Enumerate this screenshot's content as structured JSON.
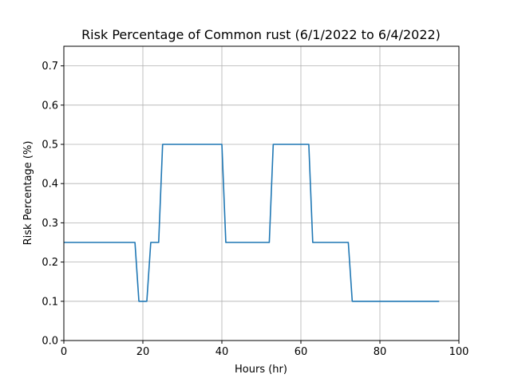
{
  "chart_data": {
    "type": "line",
    "title": "Risk Percentage of Common rust (6/1/2022 to 6/4/2022)",
    "xlabel": "Hours (hr)",
    "ylabel": "Risk Percentage (%)",
    "xlim": [
      0,
      100
    ],
    "ylim": [
      0,
      0.75
    ],
    "xticks": [
      0,
      20,
      40,
      60,
      80,
      100
    ],
    "yticks": [
      0.0,
      0.1,
      0.2,
      0.3,
      0.4,
      0.5,
      0.6,
      0.7
    ],
    "ytick_labels": [
      "0.0",
      "0.1",
      "0.2",
      "0.3",
      "0.4",
      "0.5",
      "0.6",
      "0.7"
    ],
    "grid": true,
    "line_color": "#1f77b4",
    "series": [
      {
        "x": [
          0,
          18,
          19,
          21,
          22,
          24,
          25,
          40,
          41,
          52,
          53,
          62,
          63,
          72,
          73,
          95
        ],
        "y": [
          0.25,
          0.25,
          0.1,
          0.1,
          0.25,
          0.25,
          0.5,
          0.5,
          0.25,
          0.25,
          0.5,
          0.5,
          0.25,
          0.25,
          0.1,
          0.1
        ]
      }
    ]
  }
}
